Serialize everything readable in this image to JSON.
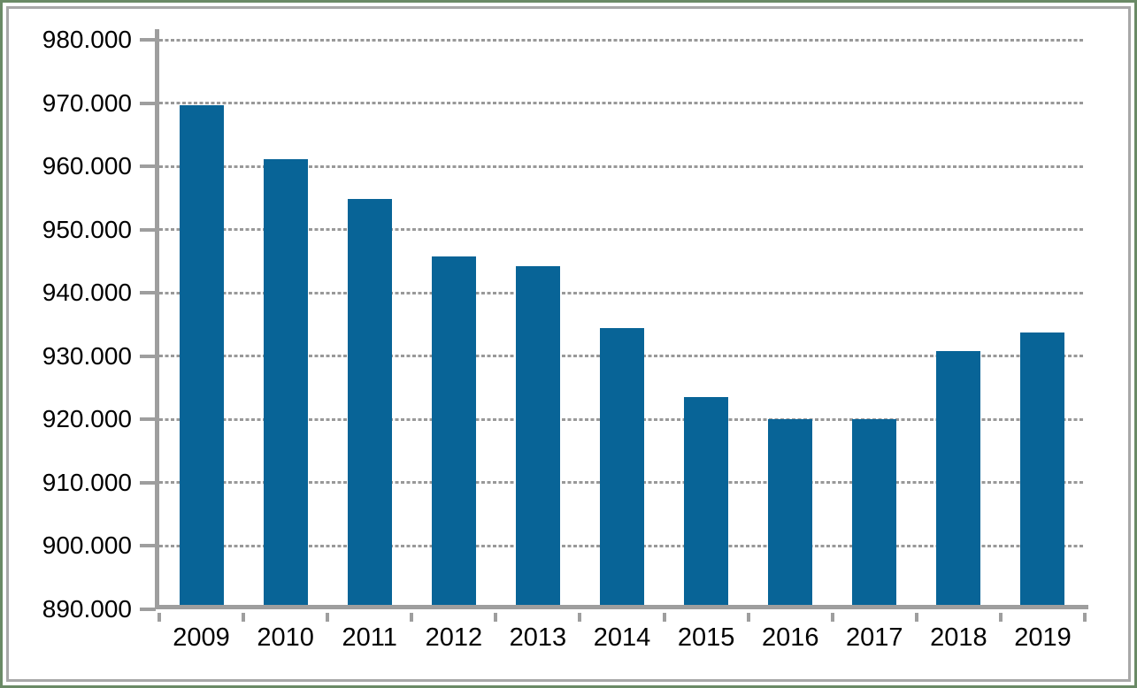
{
  "frame": {
    "outer_border_color": "#6a8a66",
    "inner_border_color": "#a8a8a8",
    "background": "#ffffff"
  },
  "chart_data": {
    "type": "bar",
    "title": "",
    "xlabel": "",
    "ylabel": "",
    "categories": [
      "2009",
      "2010",
      "2011",
      "2012",
      "2013",
      "2014",
      "2015",
      "2016",
      "2017",
      "2018",
      "2019"
    ],
    "values": [
      969700,
      961200,
      954900,
      945700,
      944200,
      934500,
      923600,
      920000,
      920000,
      930800,
      933700
    ],
    "ylim": [
      890000,
      980000
    ],
    "ytick_step": 10000,
    "ytick_labels": [
      "980.000",
      "970.000",
      "960.000",
      "950.000",
      "940.000",
      "930.000",
      "920.000",
      "910.000",
      "900.000",
      "890.000"
    ],
    "grid": "horizontal dashed gray",
    "legend": "none",
    "bar_color": "#086497",
    "axis_color": "#9e9e9e",
    "gridline_color": "#999999",
    "tick_label_color": "#000000"
  }
}
